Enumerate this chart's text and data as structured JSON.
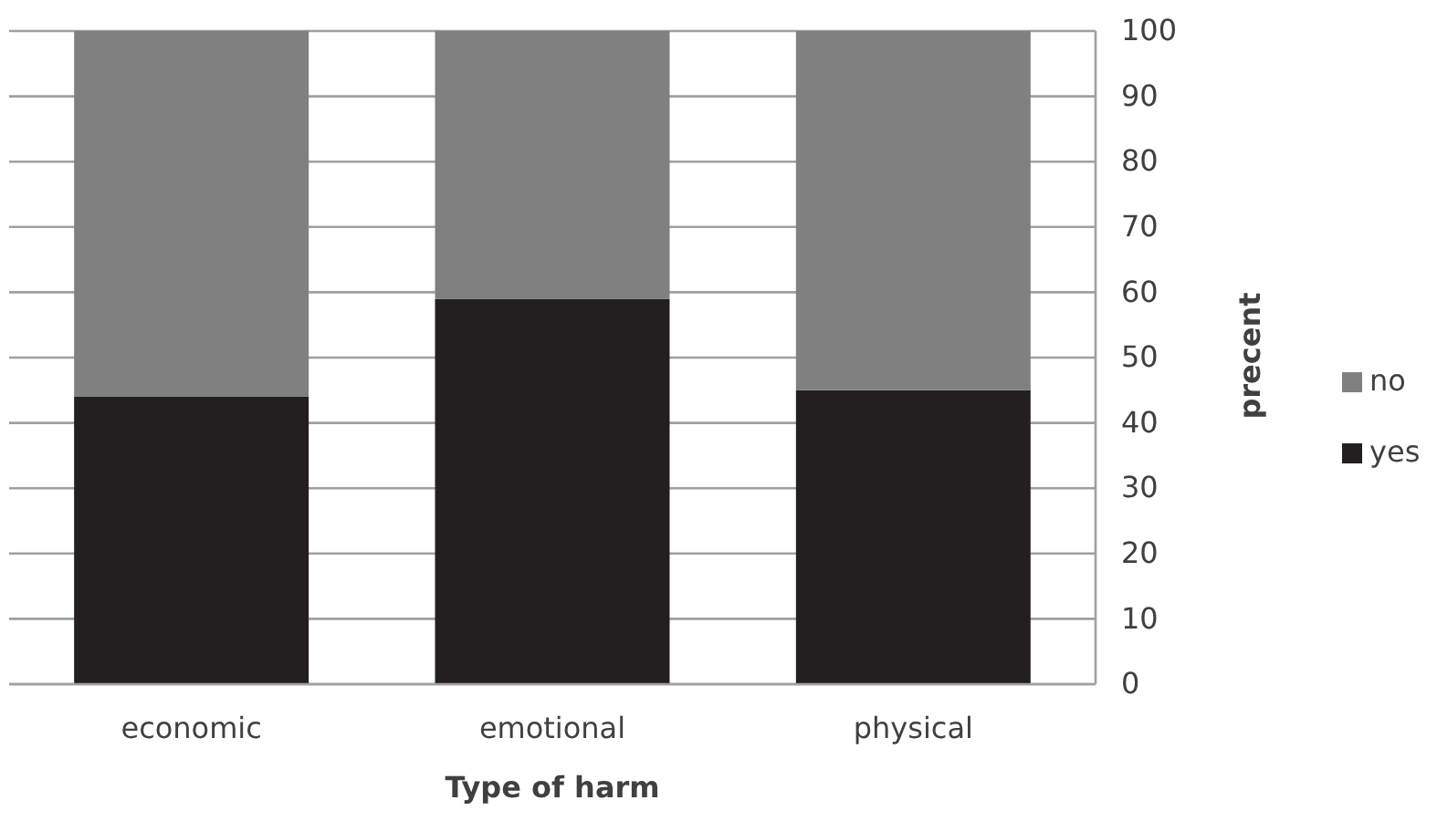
{
  "chart_data": {
    "type": "bar",
    "stacked": true,
    "xlabel": "Type of harm",
    "ylabel": "precent",
    "categories": [
      "economic",
      "emotional",
      "physical"
    ],
    "series": [
      {
        "name": "yes",
        "color": "#231f20",
        "values": [
          44,
          59,
          45
        ]
      },
      {
        "name": "no",
        "color": "#808080",
        "values": [
          56,
          41,
          55
        ]
      }
    ],
    "ylim": [
      0,
      100
    ],
    "yticks": [
      0,
      10,
      20,
      30,
      40,
      50,
      60,
      70,
      80,
      90,
      100
    ],
    "grid": "y",
    "legend": "right"
  }
}
